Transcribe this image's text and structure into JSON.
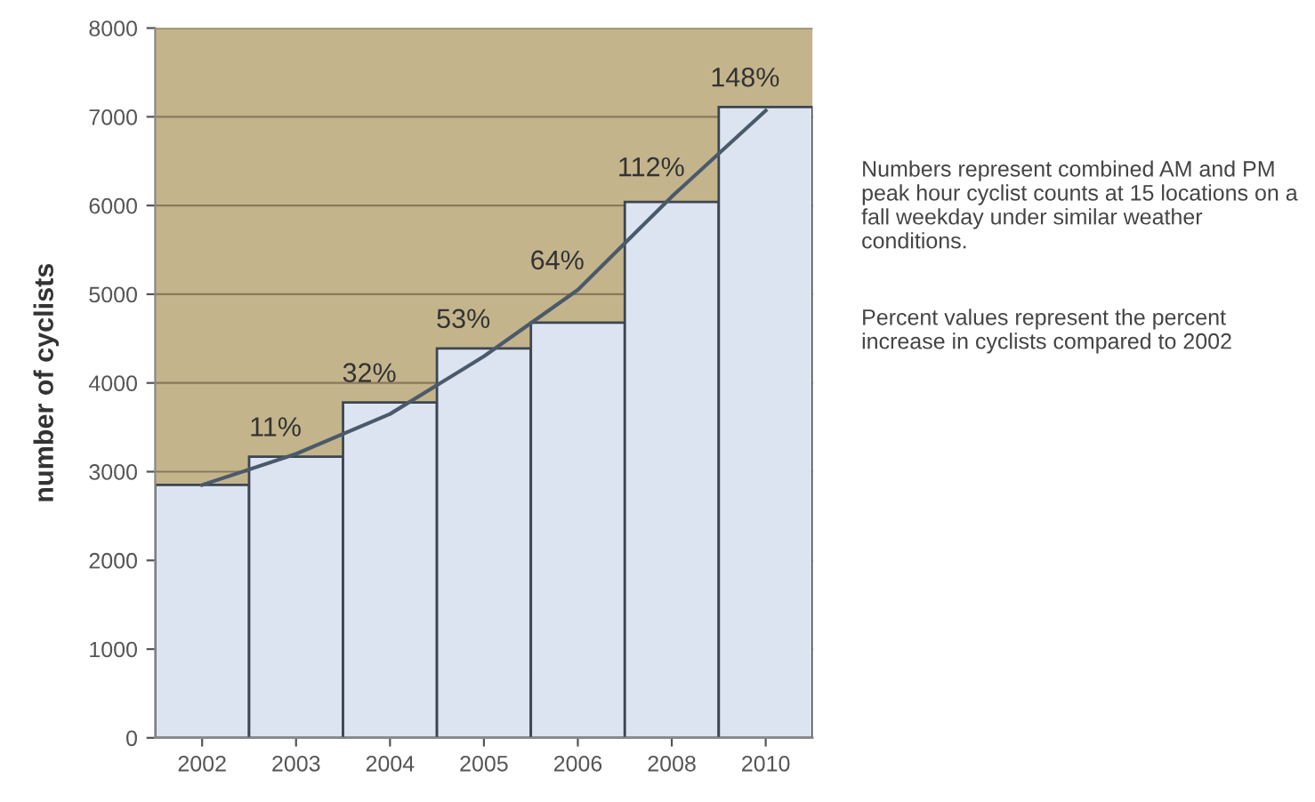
{
  "chart_data": {
    "type": "bar",
    "ylabel": "number of cyclists",
    "categories": [
      "2002",
      "2003",
      "2004",
      "2005",
      "2006",
      "2008",
      "2010"
    ],
    "series": [
      {
        "color": "#dce3f1",
        "values": [
          2850,
          3170,
          3780,
          4390,
          4680,
          6040,
          7110
        ]
      },
      {
        "type": "line",
        "color": "#4a5a6a",
        "values": [
          2850,
          3200,
          3650,
          4300,
          5050,
          6100,
          7070
        ]
      }
    ],
    "ylim": [
      0,
      8000
    ],
    "yticks": [
      0,
      1000,
      2000,
      3000,
      4000,
      5000,
      6000,
      7000,
      8000
    ],
    "grid": "y",
    "bands": [
      {
        "axis": "y",
        "from": 0,
        "to": 8000,
        "color": "#c4b48c"
      }
    ],
    "annotations": [
      {
        "text": "11%",
        "x": "2003",
        "y": 3170
      },
      {
        "text": "32%",
        "x": "2004",
        "y": 3780
      },
      {
        "text": "53%",
        "x": "2005",
        "y": 4390
      },
      {
        "text": "64%",
        "x": "2006",
        "y": 5050
      },
      {
        "text": "112%",
        "x": "2008",
        "y": 6100
      },
      {
        "text": "148%",
        "x": "2010",
        "y": 7110
      },
      "Numbers represent combined AM and PM peak hour cyclist counts at 15 locations on a fall weekday under similar weather conditions.",
      "Percent values represent the percent increase in cyclists compared to 2002"
    ]
  }
}
